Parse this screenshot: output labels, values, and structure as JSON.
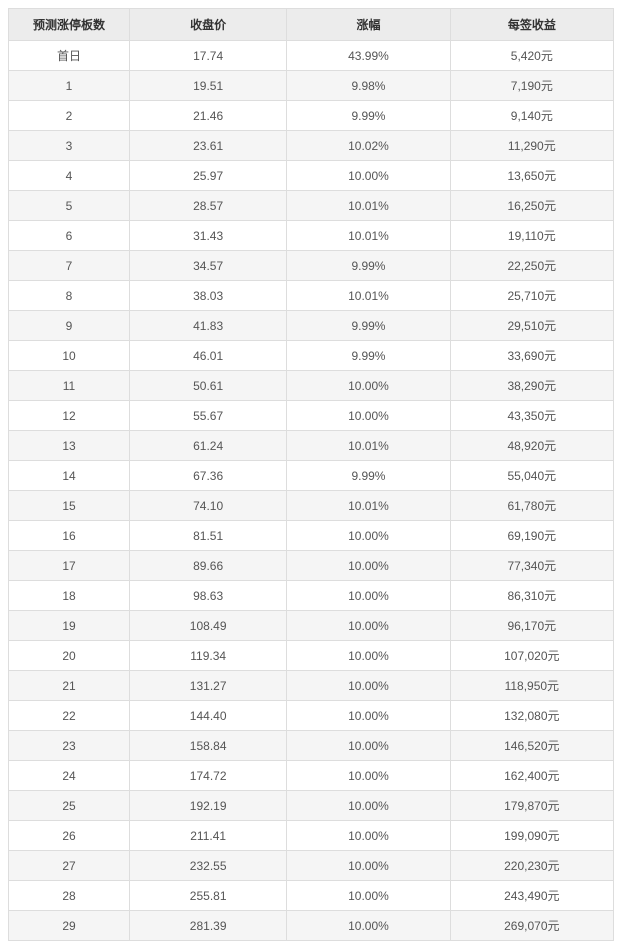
{
  "table": {
    "columns": [
      "预测涨停板数",
      "收盘价",
      "涨幅",
      "每签收益"
    ],
    "rows": [
      [
        "首日",
        "17.74",
        "43.99%",
        "5,420元"
      ],
      [
        "1",
        "19.51",
        "9.98%",
        "7,190元"
      ],
      [
        "2",
        "21.46",
        "9.99%",
        "9,140元"
      ],
      [
        "3",
        "23.61",
        "10.02%",
        "11,290元"
      ],
      [
        "4",
        "25.97",
        "10.00%",
        "13,650元"
      ],
      [
        "5",
        "28.57",
        "10.01%",
        "16,250元"
      ],
      [
        "6",
        "31.43",
        "10.01%",
        "19,110元"
      ],
      [
        "7",
        "34.57",
        "9.99%",
        "22,250元"
      ],
      [
        "8",
        "38.03",
        "10.01%",
        "25,710元"
      ],
      [
        "9",
        "41.83",
        "9.99%",
        "29,510元"
      ],
      [
        "10",
        "46.01",
        "9.99%",
        "33,690元"
      ],
      [
        "11",
        "50.61",
        "10.00%",
        "38,290元"
      ],
      [
        "12",
        "55.67",
        "10.00%",
        "43,350元"
      ],
      [
        "13",
        "61.24",
        "10.01%",
        "48,920元"
      ],
      [
        "14",
        "67.36",
        "9.99%",
        "55,040元"
      ],
      [
        "15",
        "74.10",
        "10.01%",
        "61,780元"
      ],
      [
        "16",
        "81.51",
        "10.00%",
        "69,190元"
      ],
      [
        "17",
        "89.66",
        "10.00%",
        "77,340元"
      ],
      [
        "18",
        "98.63",
        "10.00%",
        "86,310元"
      ],
      [
        "19",
        "108.49",
        "10.00%",
        "96,170元"
      ],
      [
        "20",
        "119.34",
        "10.00%",
        "107,020元"
      ],
      [
        "21",
        "131.27",
        "10.00%",
        "118,950元"
      ],
      [
        "22",
        "144.40",
        "10.00%",
        "132,080元"
      ],
      [
        "23",
        "158.84",
        "10.00%",
        "146,520元"
      ],
      [
        "24",
        "174.72",
        "10.00%",
        "162,400元"
      ],
      [
        "25",
        "192.19",
        "10.00%",
        "179,870元"
      ],
      [
        "26",
        "211.41",
        "10.00%",
        "199,090元"
      ],
      [
        "27",
        "232.55",
        "10.00%",
        "220,230元"
      ],
      [
        "28",
        "255.81",
        "10.00%",
        "243,490元"
      ],
      [
        "29",
        "281.39",
        "10.00%",
        "269,070元"
      ]
    ],
    "header_bg": "#ececec",
    "row_odd_bg": "#ffffff",
    "row_even_bg": "#f5f5f5",
    "border_color": "#dddddd",
    "header_text_color": "#333333",
    "cell_text_color": "#555555",
    "font_size": 12
  }
}
